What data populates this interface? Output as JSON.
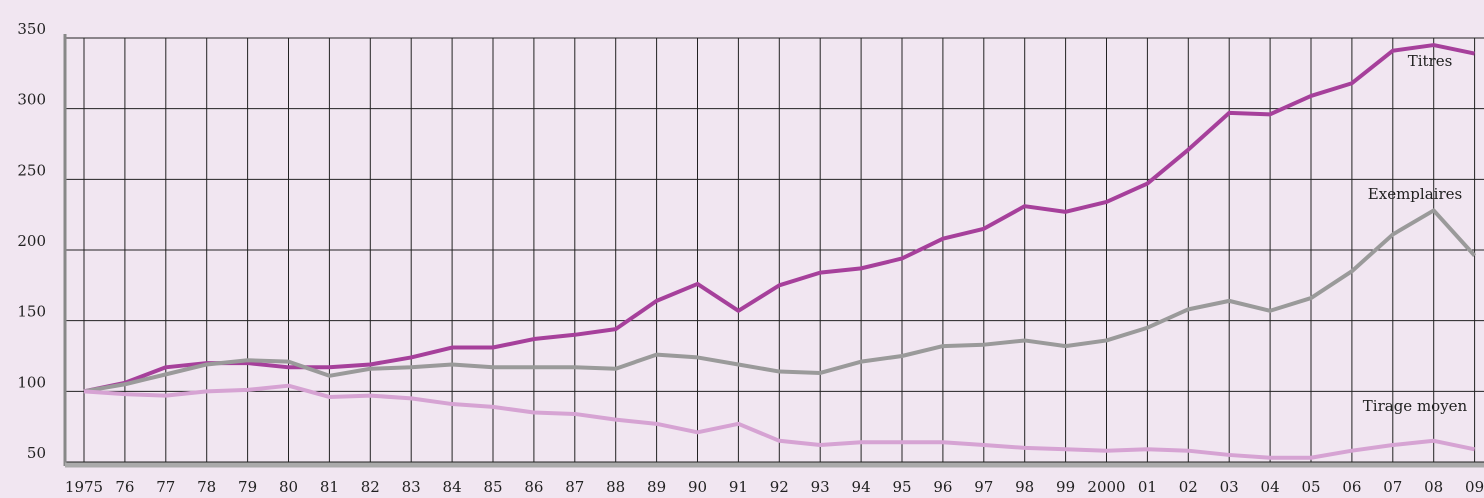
{
  "chart_data": {
    "type": "line",
    "categories": [
      "1975",
      "76",
      "77",
      "78",
      "79",
      "80",
      "81",
      "82",
      "83",
      "84",
      "85",
      "86",
      "87",
      "88",
      "89",
      "90",
      "91",
      "92",
      "93",
      "94",
      "95",
      "96",
      "97",
      "98",
      "99",
      "2000",
      "01",
      "02",
      "03",
      "04",
      "05",
      "06",
      "07",
      "08",
      "09"
    ],
    "series": [
      {
        "name": "Titres",
        "color": "#a6409b",
        "values": [
          100,
          106,
          117,
          120,
          120,
          117,
          117,
          119,
          124,
          131,
          131,
          137,
          140,
          144,
          164,
          176,
          157,
          175,
          184,
          187,
          194,
          208,
          215,
          231,
          227,
          234,
          247,
          271,
          297,
          296,
          309,
          318,
          341,
          345,
          339
        ]
      },
      {
        "name": "Exemplaires",
        "color": "#9a9a9a",
        "values": [
          100,
          105,
          112,
          119,
          122,
          121,
          111,
          116,
          117,
          119,
          117,
          117,
          117,
          116,
          126,
          124,
          119,
          114,
          113,
          121,
          125,
          132,
          133,
          136,
          132,
          136,
          145,
          158,
          164,
          157,
          166,
          185,
          211,
          228,
          196
        ]
      },
      {
        "name": "Tirage moyen",
        "color": "#d6a3d3",
        "values": [
          100,
          98,
          97,
          100,
          101,
          104,
          96,
          97,
          95,
          91,
          89,
          85,
          84,
          80,
          77,
          71,
          77,
          65,
          62,
          64,
          64,
          64,
          62,
          60,
          59,
          58,
          59,
          58,
          55,
          53,
          53,
          58,
          62,
          65,
          59
        ]
      }
    ],
    "ylim": [
      50,
      350
    ],
    "yticks": [
      50,
      100,
      150,
      200,
      250,
      300,
      350
    ],
    "grid": true
  }
}
